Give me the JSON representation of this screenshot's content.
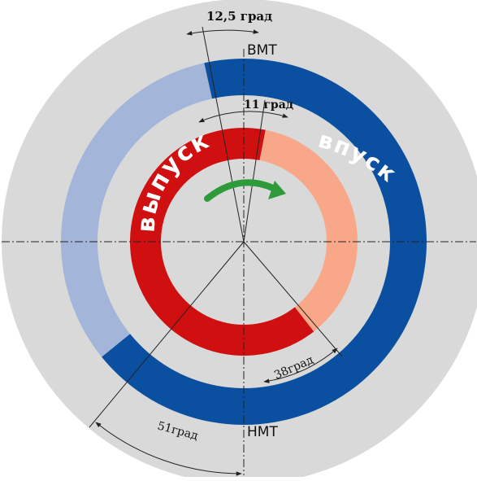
{
  "diagram": {
    "labels": {
      "bmt": "ВМТ",
      "nmt": "НМТ",
      "angle_top_outer": "12,5 град",
      "angle_top_inner": "11 град",
      "angle_bottom_right": "38град",
      "angle_bottom_left": "51град",
      "outer_ring": "впуск",
      "inner_ring": "выпуск"
    },
    "angles_deg": {
      "intake_open_before_tdc": 12.5,
      "exhaust_close_after_tdc": 11,
      "exhaust_open_before_bdc": 38,
      "intake_close_after_bdc": 51
    },
    "colors": {
      "background_disk": "#d9d9d9",
      "intake": "#0b50a0",
      "intake_light": "#a3b5d8",
      "exhaust": "#d01010",
      "exhaust_light": "#f8a889",
      "rotation_arrow": "#2e9a3a",
      "lines": "#222222"
    },
    "icons": {
      "rotation": "rotation-arrow-icon"
    }
  }
}
